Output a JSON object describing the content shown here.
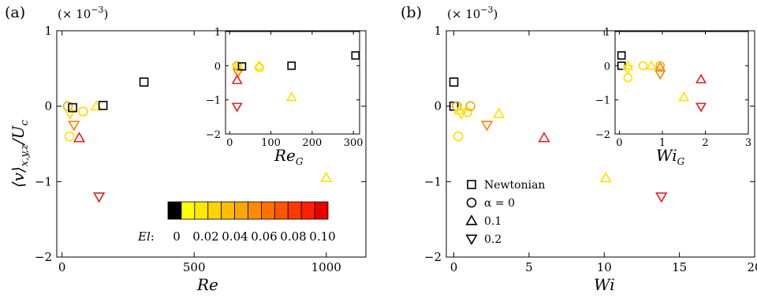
{
  "chart_data": [
    {
      "type": "scatter",
      "panel": "(a)",
      "xlabel": "Re",
      "ylabel": "⟨v⟩x,y,z/Uc",
      "scale_note": "(× 10",
      "scale_exp": "−3",
      "scale_close": ")",
      "xlim": [
        -20,
        1150
      ],
      "ylim": [
        -2,
        1
      ],
      "xticks": [
        "0",
        "500",
        "1000"
      ],
      "xtick_values": [
        0,
        500,
        1000
      ],
      "yticks": [
        "1",
        "0",
        "−1",
        "−2"
      ],
      "ytick_values": [
        1,
        0,
        -1,
        -2
      ],
      "grid": false,
      "points": [
        {
          "x": 22,
          "y": 0.0,
          "marker": "circle",
          "color": "#f5a800"
        },
        {
          "x": 28,
          "y": -0.4,
          "marker": "circle",
          "color": "#ffe000"
        },
        {
          "x": 80,
          "y": -0.07,
          "marker": "circle",
          "color": "#ffd800"
        },
        {
          "x": 30,
          "y": -0.1,
          "marker": "tri-down",
          "color": "#ffe000"
        },
        {
          "x": 45,
          "y": -0.25,
          "marker": "tri-down",
          "color": "#ff8000"
        },
        {
          "x": 140,
          "y": -1.2,
          "marker": "tri-down",
          "color": "#e02020"
        },
        {
          "x": 130,
          "y": 0.0,
          "marker": "tri-up",
          "color": "#ffe000"
        },
        {
          "x": 65,
          "y": -0.42,
          "marker": "tri-up",
          "color": "#e02020"
        },
        {
          "x": 1000,
          "y": -0.95,
          "marker": "tri-up",
          "color": "#ffe000"
        },
        {
          "x": 40,
          "y": -0.02,
          "marker": "square",
          "color": "#000000"
        },
        {
          "x": 155,
          "y": 0.01,
          "marker": "square",
          "color": "#000000"
        },
        {
          "x": 310,
          "y": 0.32,
          "marker": "square",
          "color": "#000000"
        }
      ],
      "inset": {
        "xlabel": "Re",
        "xlabel_sub": "G",
        "xlim": [
          -10,
          315
        ],
        "ylim": [
          -2,
          1
        ],
        "xticks": [
          "0",
          "100",
          "200",
          "300"
        ],
        "xtick_values": [
          0,
          100,
          200,
          300
        ],
        "yticks": [
          "1",
          "0",
          "−1",
          "−2"
        ],
        "ytick_values": [
          1,
          0,
          -1,
          -2
        ],
        "points": [
          {
            "x": 18,
            "y": 0.0,
            "marker": "circle",
            "color": "#f5a800"
          },
          {
            "x": 20,
            "y": -0.12,
            "marker": "circle",
            "color": "#ffe000"
          },
          {
            "x": 72,
            "y": -0.05,
            "marker": "circle",
            "color": "#ffd800"
          },
          {
            "x": 18,
            "y": -0.05,
            "marker": "tri-down",
            "color": "#ffe000"
          },
          {
            "x": 20,
            "y": -0.2,
            "marker": "tri-down",
            "color": "#ff8000"
          },
          {
            "x": 18,
            "y": -1.2,
            "marker": "tri-down",
            "color": "#e02020"
          },
          {
            "x": 72,
            "y": 0.0,
            "marker": "tri-up",
            "color": "#ffe000"
          },
          {
            "x": 18,
            "y": -0.42,
            "marker": "tri-up",
            "color": "#e02020"
          },
          {
            "x": 150,
            "y": -0.92,
            "marker": "tri-up",
            "color": "#ffe000"
          },
          {
            "x": 30,
            "y": -0.02,
            "marker": "square",
            "color": "#000000"
          },
          {
            "x": 150,
            "y": 0.0,
            "marker": "square",
            "color": "#000000"
          },
          {
            "x": 305,
            "y": 0.3,
            "marker": "square",
            "color": "#000000"
          }
        ]
      },
      "colorbar": {
        "label": "El",
        "label_suffix": ":",
        "tick_labels": [
          "0",
          "0.02",
          "0.04",
          "0.06",
          "0.08",
          "0.10"
        ],
        "colors": [
          "#000000",
          "#ffff00",
          "#ffe800",
          "#ffd200",
          "#ffbc00",
          "#ffa500",
          "#ff8c00",
          "#ff7000",
          "#ff5500",
          "#ff3a00",
          "#ff2000",
          "#e60000"
        ]
      }
    },
    {
      "type": "scatter",
      "panel": "(b)",
      "xlabel": "Wi",
      "scale_note": "(× 10",
      "scale_exp": "−3",
      "scale_close": ")",
      "xlim": [
        -0.5,
        20
      ],
      "ylim": [
        -2,
        1
      ],
      "xticks": [
        "0",
        "5",
        "10",
        "15",
        "20"
      ],
      "xtick_values": [
        0,
        5,
        10,
        15,
        20
      ],
      "yticks": [
        "1",
        "0",
        "−1",
        "−2"
      ],
      "ytick_values": [
        1,
        0,
        -1,
        -2
      ],
      "grid": false,
      "points": [
        {
          "x": 0.0,
          "y": 0.32,
          "marker": "square",
          "color": "#000000"
        },
        {
          "x": 0.0,
          "y": 0.0,
          "marker": "square",
          "color": "#000000"
        },
        {
          "x": 0.3,
          "y": -0.4,
          "marker": "circle",
          "color": "#ffe000"
        },
        {
          "x": 0.9,
          "y": -0.08,
          "marker": "circle",
          "color": "#ffd800"
        },
        {
          "x": 1.1,
          "y": 0.0,
          "marker": "circle",
          "color": "#f5a800"
        },
        {
          "x": 0.2,
          "y": 0.0,
          "marker": "circle",
          "color": "#f5a800"
        },
        {
          "x": 0.5,
          "y": -0.1,
          "marker": "tri-down",
          "color": "#ffe000"
        },
        {
          "x": 2.2,
          "y": -0.25,
          "marker": "tri-down",
          "color": "#ff8000"
        },
        {
          "x": 13.8,
          "y": -1.2,
          "marker": "tri-down",
          "color": "#e02020"
        },
        {
          "x": 0.4,
          "y": -0.05,
          "marker": "tri-up",
          "color": "#ffe000"
        },
        {
          "x": 3.0,
          "y": -0.1,
          "marker": "tri-up",
          "color": "#ffe000"
        },
        {
          "x": 6.0,
          "y": -0.42,
          "marker": "tri-up",
          "color": "#e02020"
        },
        {
          "x": 10.1,
          "y": -0.95,
          "marker": "tri-up",
          "color": "#ffe000"
        }
      ],
      "inset": {
        "xlabel": "Wi",
        "xlabel_sub": "G",
        "xlim": [
          -0.1,
          3.0
        ],
        "ylim": [
          -2,
          1
        ],
        "xticks": [
          "0",
          "1",
          "2",
          "3"
        ],
        "xtick_values": [
          0,
          1,
          2,
          3
        ],
        "yticks": [
          "1",
          "0",
          "−1",
          "−2"
        ],
        "ytick_values": [
          1,
          0,
          -1,
          -2
        ],
        "points": [
          {
            "x": 0.05,
            "y": 0.3,
            "marker": "square",
            "color": "#000000"
          },
          {
            "x": 0.05,
            "y": 0.0,
            "marker": "square",
            "color": "#000000"
          },
          {
            "x": 0.2,
            "y": -0.35,
            "marker": "circle",
            "color": "#ffe000"
          },
          {
            "x": 0.55,
            "y": 0.0,
            "marker": "circle",
            "color": "#ffd800"
          },
          {
            "x": 0.95,
            "y": 0.0,
            "marker": "circle",
            "color": "#f5a800"
          },
          {
            "x": 0.2,
            "y": -0.1,
            "marker": "tri-down",
            "color": "#ffe000"
          },
          {
            "x": 0.95,
            "y": -0.25,
            "marker": "tri-down",
            "color": "#ff8000"
          },
          {
            "x": 1.9,
            "y": -1.2,
            "marker": "tri-down",
            "color": "#e02020"
          },
          {
            "x": 0.2,
            "y": 0.0,
            "marker": "tri-up",
            "color": "#ffe000"
          },
          {
            "x": 0.75,
            "y": 0.0,
            "marker": "tri-up",
            "color": "#ffe000"
          },
          {
            "x": 0.95,
            "y": -0.05,
            "marker": "tri-up",
            "color": "#ff8000"
          },
          {
            "x": 1.5,
            "y": -0.92,
            "marker": "tri-up",
            "color": "#ffe000"
          },
          {
            "x": 1.9,
            "y": -0.4,
            "marker": "tri-up",
            "color": "#e02020"
          }
        ]
      },
      "legend": {
        "placement": "lower-left",
        "entries": [
          {
            "marker": "square",
            "label": "Newtonian"
          },
          {
            "marker": "circle",
            "label": "α = 0"
          },
          {
            "marker": "tri-up",
            "label": "0.1"
          },
          {
            "marker": "tri-down",
            "label": "0.2"
          }
        ]
      }
    }
  ]
}
